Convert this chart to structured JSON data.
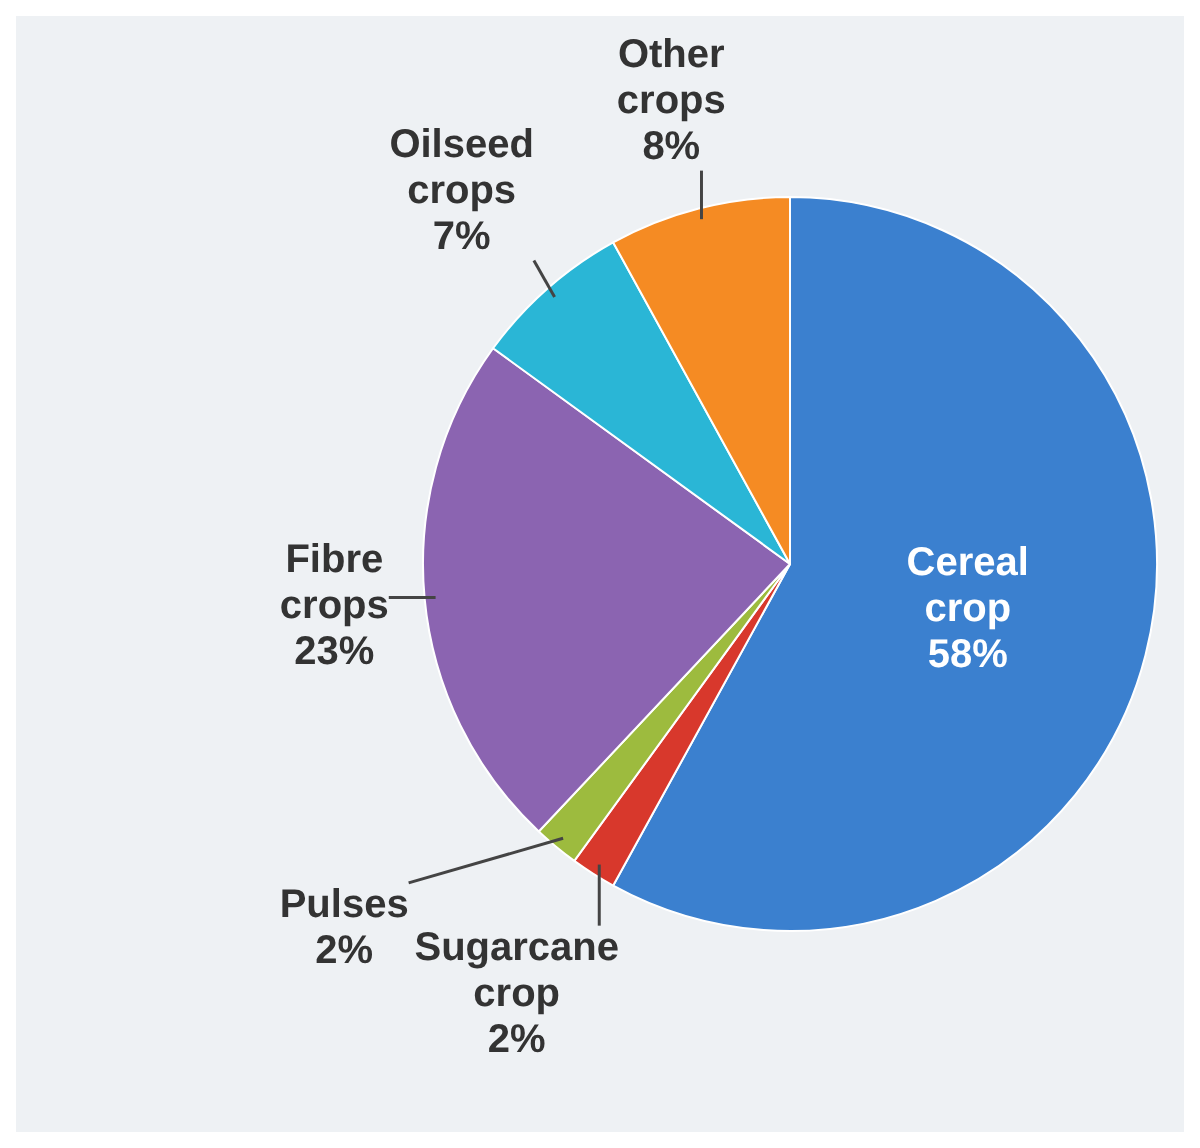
{
  "chart_data": {
    "type": "pie",
    "categories": [
      "Cereal crop",
      "Sugarcane crop",
      "Pulses",
      "Fibre crops",
      "Oilseed crops",
      "Other crops"
    ],
    "values": [
      58,
      2,
      2,
      23,
      7,
      8
    ],
    "colors": [
      "#3b80cf",
      "#d8382c",
      "#9dbb3e",
      "#8b64b1",
      "#2ab6d6",
      "#f58b23"
    ],
    "value_labels": [
      "58%",
      "2%",
      "2%",
      "23%",
      "7%",
      "8%"
    ],
    "legend": false
  }
}
